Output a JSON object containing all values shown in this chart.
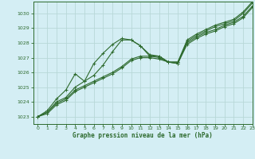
{
  "title": "Graphe pression niveau de la mer (hPa)",
  "background_color": "#d4eef4",
  "grid_color": "#b8d8d8",
  "line_color": "#2d6a2d",
  "xlim": [
    -0.5,
    23
  ],
  "ylim": [
    1022.5,
    1030.8
  ],
  "xticks": [
    0,
    1,
    2,
    3,
    4,
    5,
    6,
    7,
    8,
    9,
    10,
    11,
    12,
    13,
    14,
    15,
    16,
    17,
    18,
    19,
    20,
    21,
    22,
    23
  ],
  "yticks": [
    1023,
    1024,
    1025,
    1026,
    1027,
    1028,
    1029,
    1030
  ],
  "series": [
    {
      "x": [
        0,
        1,
        2,
        3,
        4,
        5,
        6,
        7,
        8,
        9,
        10,
        11,
        12,
        13,
        14,
        15,
        16,
        17,
        18,
        19,
        20,
        21,
        22,
        23
      ],
      "y": [
        1023.0,
        1023.4,
        1024.2,
        1024.8,
        1025.9,
        1025.4,
        1026.6,
        1027.3,
        1027.9,
        1028.3,
        1028.2,
        1027.8,
        1027.1,
        1027.1,
        1026.7,
        1026.7,
        1028.2,
        1028.6,
        1028.9,
        1029.2,
        1029.4,
        1029.6,
        1030.1,
        1030.8
      ]
    },
    {
      "x": [
        0,
        1,
        2,
        3,
        4,
        5,
        6,
        7,
        8,
        9,
        10,
        11,
        12,
        13,
        14,
        15,
        16,
        17,
        18,
        19,
        20,
        21,
        22,
        23
      ],
      "y": [
        1023.0,
        1023.3,
        1024.0,
        1024.3,
        1025.0,
        1025.4,
        1025.8,
        1026.5,
        1027.4,
        1028.2,
        1028.2,
        1027.8,
        1027.2,
        1027.1,
        1026.7,
        1026.6,
        1028.1,
        1028.5,
        1028.8,
        1029.1,
        1029.3,
        1029.5,
        1030.0,
        1030.7
      ]
    },
    {
      "x": [
        0,
        1,
        2,
        3,
        4,
        5,
        6,
        7,
        8,
        9,
        10,
        11,
        12,
        13,
        14,
        15,
        16,
        17,
        18,
        19,
        20,
        21,
        22,
        23
      ],
      "y": [
        1023.0,
        1023.3,
        1023.9,
        1024.2,
        1024.8,
        1025.1,
        1025.4,
        1025.7,
        1026.0,
        1026.4,
        1026.9,
        1027.1,
        1027.1,
        1027.0,
        1026.7,
        1026.7,
        1028.0,
        1028.4,
        1028.7,
        1028.9,
        1029.2,
        1029.4,
        1029.8,
        1030.5
      ]
    },
    {
      "x": [
        0,
        1,
        2,
        3,
        4,
        5,
        6,
        7,
        8,
        9,
        10,
        11,
        12,
        13,
        14,
        15,
        16,
        17,
        18,
        19,
        20,
        21,
        22,
        23
      ],
      "y": [
        1023.0,
        1023.2,
        1023.8,
        1024.1,
        1024.7,
        1025.0,
        1025.3,
        1025.6,
        1025.9,
        1026.3,
        1026.8,
        1027.0,
        1027.0,
        1026.9,
        1026.7,
        1026.6,
        1027.9,
        1028.3,
        1028.6,
        1028.8,
        1029.1,
        1029.3,
        1029.7,
        1030.4
      ]
    }
  ]
}
